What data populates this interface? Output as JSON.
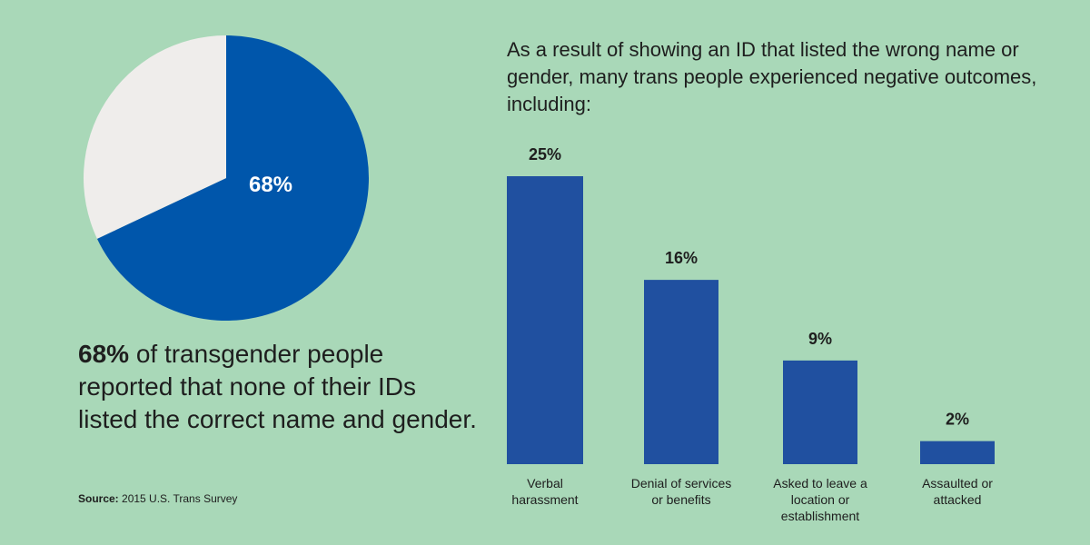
{
  "colors": {
    "background": "#a9d8b8",
    "pie_main": "#0056ab",
    "pie_rest": "#efedeb",
    "bar": "#2050a0"
  },
  "chart_data": [
    {
      "type": "pie",
      "slices": [
        {
          "label": "68%",
          "value": 68
        },
        {
          "label": "",
          "value": 32
        }
      ],
      "center_label": "68%"
    },
    {
      "type": "bar",
      "title": "As a result of showing an ID that listed the wrong name or gender, many trans people experienced negative outcomes, including:",
      "categories": [
        "Verbal harassment",
        "Denial of services or benefits",
        "Asked to leave a location or establishment",
        "Assaulted or attacked"
      ],
      "category_lines": [
        [
          "Verbal",
          "harassment"
        ],
        [
          "Denial of services",
          "or benefits"
        ],
        [
          "Asked to leave a",
          "location or",
          "establishment"
        ],
        [
          "Assaulted or",
          "attacked"
        ]
      ],
      "values": [
        25,
        16,
        9,
        2
      ],
      "value_labels": [
        "25%",
        "16%",
        "9%",
        "2%"
      ],
      "ylim": [
        0,
        25
      ]
    }
  ],
  "statement": {
    "highlight": "68%",
    "rest": " of transgender people reported that none of their IDs listed the correct name and gender."
  },
  "source": {
    "label": "Source:",
    "text": " 2015 U.S. Trans Survey"
  }
}
